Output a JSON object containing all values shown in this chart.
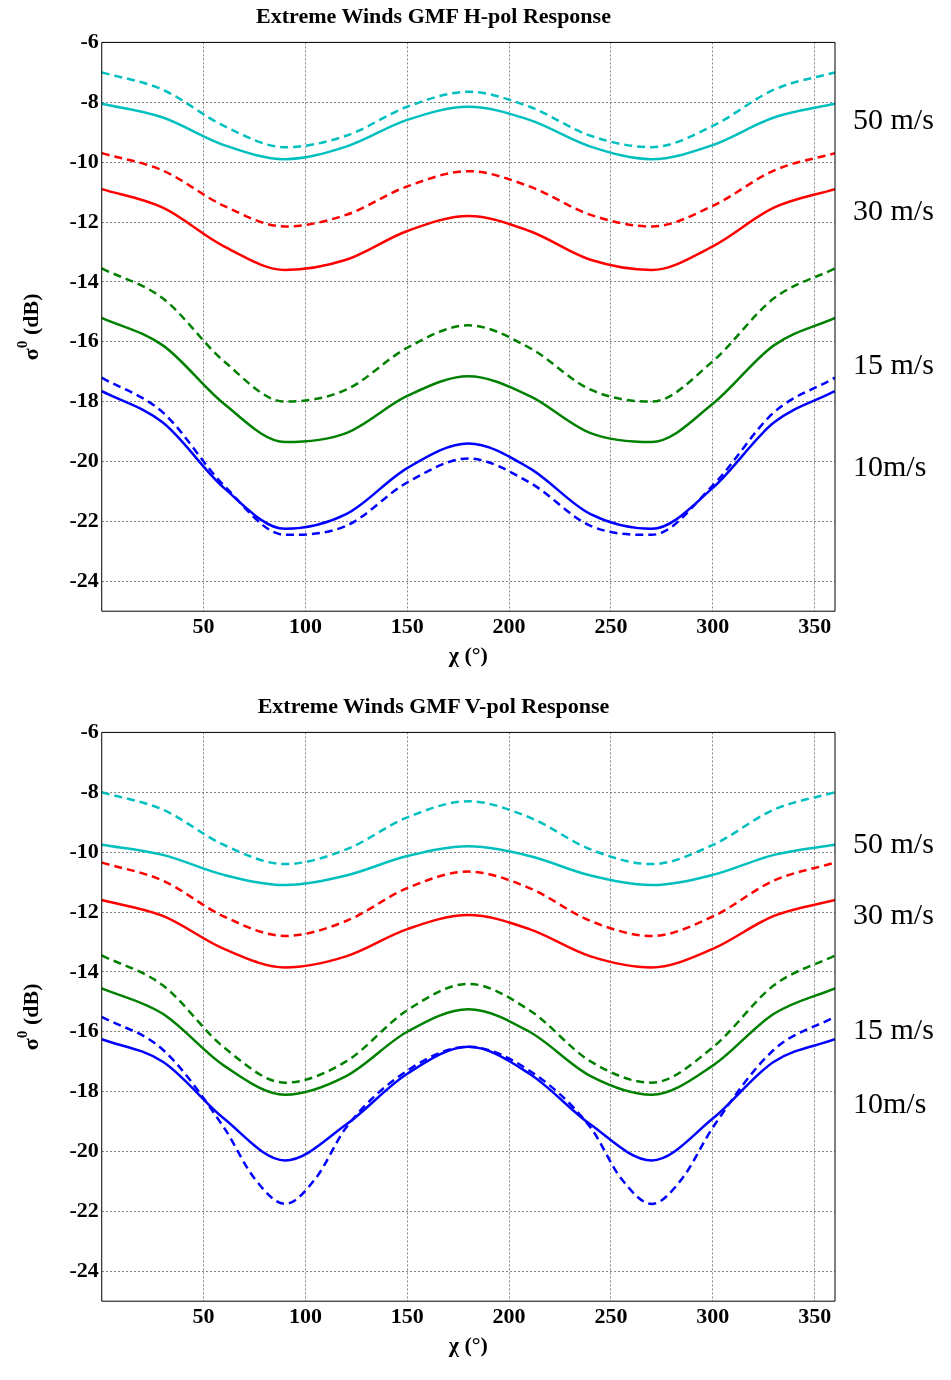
{
  "chart_data": [
    {
      "type": "line",
      "title": "Extreme Winds GMF H-pol Response",
      "xlabel": "χ (°)",
      "ylabel": "σ$^{0}$ (dB)",
      "x": [
        0,
        30,
        60,
        90,
        120,
        150,
        180,
        210,
        240,
        270,
        300,
        330,
        360
      ],
      "xlim": [
        0,
        360
      ],
      "xticks": [
        50,
        100,
        150,
        200,
        250,
        300,
        350
      ],
      "ylim": [
        -25,
        -6
      ],
      "yticks": [
        -24,
        -22,
        -20,
        -18,
        -16,
        -14,
        -12,
        -10,
        -8,
        -6
      ],
      "grid": true,
      "series": [
        {
          "color": "#00bfbf",
          "line_style": "dashed",
          "values": [
            -7.0,
            -7.58,
            -8.79,
            -9.5,
            -9.12,
            -8.15,
            -7.65,
            -8.15,
            -9.12,
            -9.5,
            -8.79,
            -7.58,
            -7.0
          ]
        },
        {
          "color": "#00bfbf",
          "line_style": "solid",
          "values": [
            -8.05,
            -8.51,
            -9.43,
            -9.9,
            -9.48,
            -8.59,
            -8.15,
            -8.59,
            -9.48,
            -9.9,
            -9.43,
            -8.51,
            -8.05
          ]
        },
        {
          "color": "#ff0000",
          "line_style": "dashed",
          "values": [
            -9.7,
            -10.28,
            -11.46,
            -12.15,
            -11.76,
            -10.81,
            -10.3,
            -10.81,
            -11.76,
            -12.15,
            -11.46,
            -10.28,
            -9.7
          ]
        },
        {
          "color": "#ff0000",
          "line_style": "solid",
          "values": [
            -10.9,
            -11.52,
            -12.81,
            -13.6,
            -13.26,
            -12.3,
            -11.8,
            -12.3,
            -13.26,
            -13.6,
            -12.81,
            -11.52,
            -10.9
          ]
        },
        {
          "color": "#008000",
          "line_style": "dashed",
          "values": [
            -13.55,
            -14.55,
            -16.65,
            -18.0,
            -17.6,
            -16.2,
            -15.45,
            -16.2,
            -17.6,
            -18.0,
            -16.65,
            -14.55,
            -13.55
          ]
        },
        {
          "color": "#008000",
          "line_style": "solid",
          "values": [
            -15.2,
            -16.12,
            -18.07,
            -19.35,
            -19.05,
            -17.81,
            -17.15,
            -17.81,
            -19.05,
            -19.35,
            -18.07,
            -16.12,
            -15.2
          ]
        },
        {
          "color": "#0000ff",
          "line_style": "dashed",
          "values": [
            -17.2,
            -18.36,
            -20.8,
            -22.45,
            -22.15,
            -20.7,
            -19.9,
            -20.7,
            -22.15,
            -22.45,
            -20.8,
            -18.36,
            -17.2
          ]
        },
        {
          "color": "#0000ff",
          "line_style": "solid",
          "values": [
            -17.65,
            -18.7,
            -20.88,
            -22.25,
            -21.76,
            -20.22,
            -19.4,
            -20.22,
            -21.76,
            -22.25,
            -20.88,
            -18.7,
            -17.65
          ]
        }
      ],
      "annotations": [
        "50 m/s",
        "30 m/s",
        "15 m/s",
        "10m/s"
      ]
    },
    {
      "type": "line",
      "title": "Extreme Winds GMF V-pol Response",
      "xlabel": "χ (°)",
      "ylabel": "σ$^{0}$ (dB)",
      "x": [
        0,
        30,
        60,
        90,
        120,
        150,
        180,
        210,
        240,
        270,
        300,
        330,
        360
      ],
      "xlim": [
        0,
        360
      ],
      "xticks": [
        50,
        100,
        150,
        200,
        250,
        300,
        350
      ],
      "ylim": [
        -25,
        -6
      ],
      "yticks": [
        -24,
        -22,
        -20,
        -18,
        -16,
        -14,
        -12,
        -10,
        -8,
        -6
      ],
      "grid": true,
      "series": [
        {
          "color": "#00bfbf",
          "line_style": "dashed",
          "values": [
            -8.0,
            -8.58,
            -9.76,
            -10.4,
            -9.91,
            -8.84,
            -8.3,
            -8.84,
            -9.91,
            -10.4,
            -9.76,
            -8.58,
            -8.0
          ]
        },
        {
          "color": "#00bfbf",
          "line_style": "solid",
          "values": [
            -9.75,
            -10.09,
            -10.76,
            -11.1,
            -10.78,
            -10.13,
            -9.8,
            -10.13,
            -10.78,
            -11.1,
            -10.76,
            -10.09,
            -9.75
          ]
        },
        {
          "color": "#ff0000",
          "line_style": "dashed",
          "values": [
            -10.35,
            -10.95,
            -12.15,
            -12.8,
            -12.3,
            -11.2,
            -10.65,
            -11.2,
            -12.3,
            -12.8,
            -12.15,
            -10.95,
            -10.35
          ]
        },
        {
          "color": "#ff0000",
          "line_style": "solid",
          "values": [
            -11.6,
            -12.13,
            -13.23,
            -13.85,
            -13.48,
            -12.57,
            -12.1,
            -12.57,
            -13.48,
            -13.85,
            -13.23,
            -12.13,
            -11.6
          ]
        },
        {
          "color": "#008000",
          "line_style": "dashed",
          "values": [
            -13.45,
            -14.45,
            -16.52,
            -17.7,
            -16.99,
            -15.28,
            -14.4,
            -15.28,
            -16.99,
            -17.7,
            -16.52,
            -14.45,
            -13.45
          ]
        },
        {
          "color": "#008000",
          "line_style": "solid",
          "values": [
            -14.55,
            -15.4,
            -17.13,
            -18.1,
            -17.48,
            -16.0,
            -15.25,
            -16.0,
            -17.48,
            -18.1,
            -17.13,
            -15.4,
            -14.55
          ]
        },
        {
          "color": "#0000ff",
          "line_style": "dashed",
          "x": [
            0,
            30,
            60,
            75,
            90,
            105,
            120,
            150,
            180,
            210,
            240,
            255,
            270,
            285,
            300,
            330,
            360
          ],
          "values": [
            -15.5,
            -16.6,
            -19.2,
            -20.9,
            -21.75,
            -20.9,
            -19.2,
            -17.3,
            -16.5,
            -17.3,
            -19.2,
            -20.9,
            -21.75,
            -20.9,
            -19.2,
            -16.6,
            -15.5
          ]
        },
        {
          "color": "#0000ff",
          "line_style": "solid",
          "values": [
            -16.25,
            -17.0,
            -18.9,
            -20.3,
            -19.1,
            -17.4,
            -16.5,
            -17.4,
            -19.1,
            -20.3,
            -18.9,
            -17.0,
            -16.25
          ]
        }
      ],
      "annotations": [
        "50 m/s",
        "30 m/s",
        "15 m/s",
        "10m/s"
      ]
    }
  ]
}
